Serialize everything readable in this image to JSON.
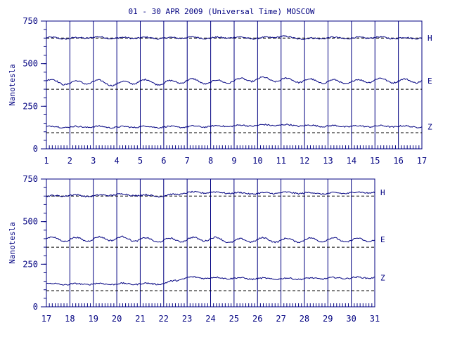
{
  "colors": {
    "ink": "#000080",
    "background": "#ffffff",
    "dashed_baseline": "#000000"
  },
  "chart_data": [
    {
      "type": "line",
      "title": "01 - 30 APR 2009 (Universal Time) MOSCOW",
      "ylabel": "Nanotesla",
      "xlabel": "",
      "x_ticks": [
        "1",
        "2",
        "3",
        "4",
        "5",
        "6",
        "7",
        "8",
        "9",
        "10",
        "11",
        "12",
        "13",
        "14",
        "15",
        "16",
        "17"
      ],
      "xlim": [
        1,
        17
      ],
      "y_ticks": [
        0,
        250,
        500,
        750
      ],
      "ylim": [
        0,
        750
      ],
      "grid": "vertical day lines",
      "series": [
        {
          "name": "H",
          "baseline": 650,
          "values": [
            652,
            648,
            655,
            650,
            652,
            649,
            654,
            650,
            655,
            648,
            660,
            645,
            652,
            650,
            654,
            650,
            651
          ]
        },
        {
          "name": "E",
          "baseline": 350,
          "values": [
            400,
            385,
            395,
            380,
            398,
            385,
            402,
            390,
            400,
            410,
            405,
            400,
            395,
            392,
            405,
            398,
            400
          ]
        },
        {
          "name": "Z",
          "baseline": 95,
          "values": [
            130,
            128,
            130,
            127,
            130,
            128,
            130,
            132,
            135,
            138,
            140,
            136,
            134,
            132,
            133,
            132,
            130
          ]
        }
      ]
    },
    {
      "type": "line",
      "title": "",
      "ylabel": "Nanotesla",
      "xlabel": "",
      "x_ticks": [
        "17",
        "18",
        "19",
        "20",
        "21",
        "22",
        "23",
        "24",
        "25",
        "26",
        "27",
        "28",
        "29",
        "30",
        "31"
      ],
      "xlim": [
        17,
        31
      ],
      "y_ticks": [
        0,
        250,
        500,
        750
      ],
      "ylim": [
        0,
        750
      ],
      "grid": "vertical day lines",
      "series": [
        {
          "name": "H",
          "baseline": 650,
          "values": [
            648,
            655,
            650,
            660,
            655,
            650,
            670,
            672,
            668,
            665,
            670,
            668,
            665,
            670,
            672
          ]
        },
        {
          "name": "E",
          "baseline": 350,
          "values": [
            400,
            395,
            398,
            402,
            395,
            390,
            395,
            400,
            385,
            395,
            390,
            392,
            395,
            390,
            395
          ]
        },
        {
          "name": "Z",
          "baseline": 95,
          "values": [
            135,
            132,
            135,
            134,
            135,
            136,
            172,
            170,
            168,
            165,
            165,
            165,
            168,
            170,
            172
          ]
        }
      ]
    }
  ]
}
